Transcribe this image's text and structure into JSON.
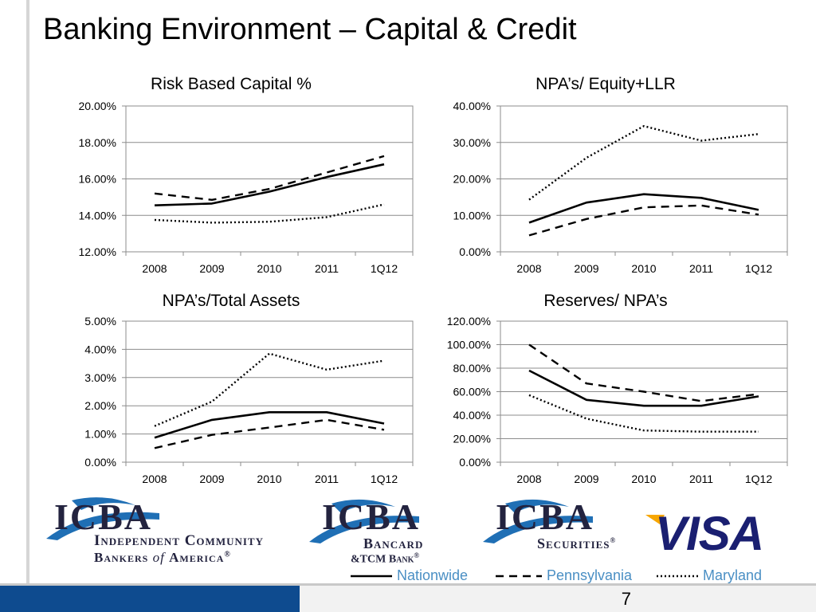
{
  "page": {
    "title": "Banking Environment – Capital & Credit",
    "page_number": "7"
  },
  "legend": {
    "items": [
      {
        "label": "Nationwide",
        "style": "solid"
      },
      {
        "label": "Pennsylvania",
        "style": "dashed"
      },
      {
        "label": "Maryland",
        "style": "dotted"
      }
    ],
    "color": "#4a8fc4"
  },
  "logos": {
    "icba": {
      "mark": "ICBA",
      "line1": "Independent Community",
      "line2_a": "Bankers ",
      "line2_of": "of ",
      "line2_b": "America",
      "reg": "®"
    },
    "icba_bancard": {
      "mark": "ICBA",
      "line1": "Bancard",
      "line2": "&TCM Bank",
      "reg": "®"
    },
    "icba_securities": {
      "mark": "ICBA",
      "line1": "Securities",
      "reg": "®"
    },
    "visa": {
      "text": "VISA",
      "color": "#1a1f71",
      "accent": "#f7a600"
    }
  },
  "colors": {
    "brand_blue": "#0e4b8f",
    "icba_navy": "#23233f",
    "icba_swoosh": "#1f6fb5"
  },
  "chart_data": [
    {
      "type": "line",
      "title": "Risk Based Capital %",
      "categories": [
        "2008",
        "2009",
        "2010",
        "2011",
        "1Q12"
      ],
      "yticks": [
        "20.00%",
        "18.00%",
        "16.00%",
        "14.00%",
        "12.00%"
      ],
      "ylim": [
        12,
        20
      ],
      "series": [
        {
          "name": "Nationwide",
          "style": "solid",
          "values": [
            14.55,
            14.65,
            15.3,
            16.1,
            16.8
          ]
        },
        {
          "name": "Pennsylvania",
          "style": "dashed",
          "values": [
            15.2,
            14.85,
            15.45,
            16.35,
            17.25
          ]
        },
        {
          "name": "Maryland",
          "style": "dotted",
          "values": [
            13.75,
            13.6,
            13.65,
            13.9,
            14.6
          ]
        }
      ]
    },
    {
      "type": "line",
      "title": "NPA’s/ Equity+LLR",
      "categories": [
        "2008",
        "2009",
        "2010",
        "2011",
        "1Q12"
      ],
      "yticks": [
        "40.00%",
        "30.00%",
        "20.00%",
        "10.00%",
        "0.00%"
      ],
      "ylim": [
        0,
        40
      ],
      "series": [
        {
          "name": "Nationwide",
          "style": "solid",
          "values": [
            8.0,
            13.5,
            15.8,
            14.8,
            11.5
          ]
        },
        {
          "name": "Pennsylvania",
          "style": "dashed",
          "values": [
            4.5,
            9.0,
            12.2,
            12.7,
            10.2
          ]
        },
        {
          "name": "Maryland",
          "style": "dotted",
          "values": [
            14.3,
            25.8,
            34.5,
            30.5,
            32.3
          ]
        }
      ]
    },
    {
      "type": "line",
      "title": "NPA’s/Total Assets",
      "categories": [
        "2008",
        "2009",
        "2010",
        "2011",
        "1Q12"
      ],
      "yticks": [
        "5.00%",
        "4.00%",
        "3.00%",
        "2.00%",
        "1.00%",
        "0.00%"
      ],
      "ylim": [
        0,
        5
      ],
      "series": [
        {
          "name": "Nationwide",
          "style": "solid",
          "values": [
            0.87,
            1.5,
            1.77,
            1.77,
            1.37
          ]
        },
        {
          "name": "Pennsylvania",
          "style": "dashed",
          "values": [
            0.5,
            0.97,
            1.23,
            1.5,
            1.15
          ]
        },
        {
          "name": "Maryland",
          "style": "dotted",
          "values": [
            1.28,
            2.15,
            3.85,
            3.28,
            3.6
          ]
        }
      ]
    },
    {
      "type": "line",
      "title": "Reserves/ NPA’s",
      "categories": [
        "2008",
        "2009",
        "2010",
        "2011",
        "1Q12"
      ],
      "yticks": [
        "120.00%",
        "100.00%",
        "80.00%",
        "60.00%",
        "40.00%",
        "20.00%",
        "0.00%"
      ],
      "ylim": [
        0,
        120
      ],
      "series": [
        {
          "name": "Nationwide",
          "style": "solid",
          "values": [
            78,
            53,
            48,
            48,
            56
          ]
        },
        {
          "name": "Pennsylvania",
          "style": "dashed",
          "values": [
            100,
            67,
            60,
            52,
            58
          ]
        },
        {
          "name": "Maryland",
          "style": "dotted",
          "values": [
            57,
            37,
            27,
            26,
            26
          ]
        }
      ]
    }
  ]
}
